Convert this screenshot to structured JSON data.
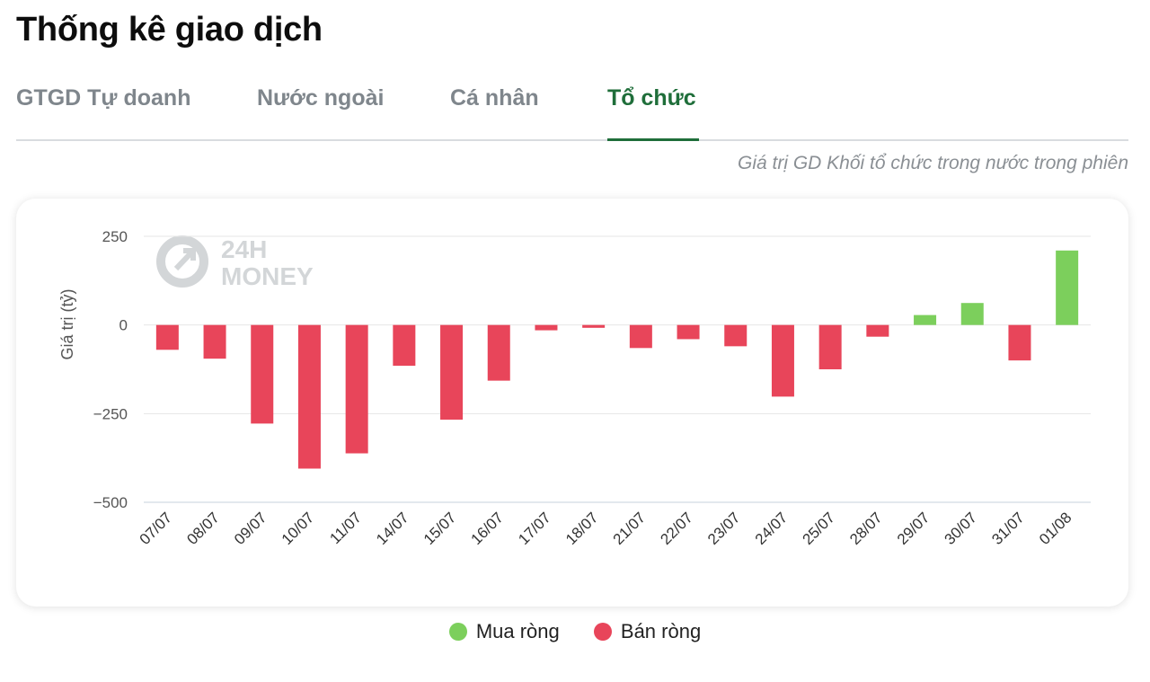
{
  "page_title": "Thống kê giao dịch",
  "tabs": [
    {
      "label": "GTGD Tự doanh",
      "active": false
    },
    {
      "label": "Nước ngoài",
      "active": false
    },
    {
      "label": "Cá nhân",
      "active": false
    },
    {
      "label": "Tổ chức",
      "active": true
    }
  ],
  "subtitle": "Giá trị GD Khối tổ chức trong nước trong phiên",
  "watermark": {
    "line1": "24H",
    "line2": "MONEY"
  },
  "legend": [
    {
      "label": "Mua ròng",
      "color": "#7ccf5c"
    },
    {
      "label": "Bán ròng",
      "color": "#e8455a"
    }
  ],
  "colors": {
    "positive": "#7ccf5c",
    "negative": "#e8455a",
    "active_tab": "#1f6e3a"
  },
  "chart_data": {
    "type": "bar",
    "ylabel": "Giá trị (tỷ)",
    "xlabel": "",
    "ylim": [
      -500,
      250
    ],
    "yticks": [
      250,
      0,
      -250,
      -500
    ],
    "ytick_labels": [
      "250",
      "0",
      "−250",
      "−500"
    ],
    "grid": true,
    "categories": [
      "07/07",
      "08/07",
      "09/07",
      "10/07",
      "11/07",
      "14/07",
      "15/07",
      "16/07",
      "17/07",
      "18/07",
      "21/07",
      "22/07",
      "23/07",
      "24/07",
      "25/07",
      "28/07",
      "29/07",
      "30/07",
      "31/07",
      "01/08"
    ],
    "values": [
      -70,
      -95,
      -278,
      -405,
      -362,
      -115,
      -267,
      -157,
      -15,
      -8,
      -65,
      -40,
      -60,
      -202,
      -125,
      -33,
      28,
      62,
      -100,
      210
    ]
  }
}
